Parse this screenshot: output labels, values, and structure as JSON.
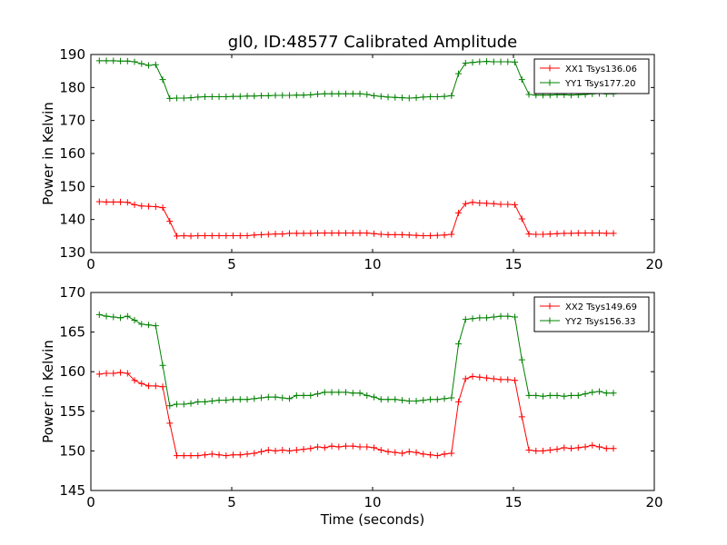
{
  "title": "gl0, ID:48577 Calibrated Amplitude",
  "xlabel": "Time (seconds)",
  "chart_data": [
    {
      "type": "line",
      "xlabel": "",
      "ylabel": "Power in Kelvin",
      "xlim": [
        0,
        20
      ],
      "ylim": [
        130,
        190
      ],
      "xticks": [
        0,
        5,
        10,
        15,
        20
      ],
      "yticks": [
        130,
        140,
        150,
        160,
        170,
        180,
        190
      ],
      "grid": false,
      "legend": "top-right",
      "x": [
        0.3,
        0.55,
        0.8,
        1.05,
        1.3,
        1.55,
        1.8,
        2.05,
        2.3,
        2.55,
        2.8,
        3.05,
        3.3,
        3.55,
        3.8,
        4.05,
        4.3,
        4.55,
        4.8,
        5.05,
        5.3,
        5.55,
        5.8,
        6.05,
        6.3,
        6.55,
        6.8,
        7.05,
        7.3,
        7.55,
        7.8,
        8.05,
        8.3,
        8.55,
        8.8,
        9.05,
        9.3,
        9.55,
        9.8,
        10.05,
        10.3,
        10.55,
        10.8,
        11.05,
        11.3,
        11.55,
        11.8,
        12.05,
        12.3,
        12.55,
        12.8,
        13.05,
        13.3,
        13.55,
        13.8,
        14.05,
        14.3,
        14.55,
        14.8,
        15.05,
        15.3,
        15.55,
        15.8,
        16.05,
        16.3,
        16.55,
        16.8,
        17.05,
        17.3,
        17.55,
        17.8,
        18.05,
        18.3,
        18.55
      ],
      "series": [
        {
          "name": "XX1 Tsys136.06",
          "color": "#ff0000",
          "values": [
            145.4,
            145.3,
            145.3,
            145.3,
            145.2,
            144.5,
            144.1,
            144.0,
            143.9,
            143.6,
            139.5,
            135.0,
            135.1,
            135.0,
            135.1,
            135.1,
            135.1,
            135.1,
            135.1,
            135.1,
            135.1,
            135.1,
            135.3,
            135.4,
            135.5,
            135.6,
            135.6,
            135.8,
            135.8,
            135.8,
            135.8,
            135.9,
            135.9,
            135.9,
            135.9,
            135.9,
            135.9,
            135.9,
            135.9,
            135.7,
            135.5,
            135.4,
            135.4,
            135.4,
            135.3,
            135.2,
            135.1,
            135.1,
            135.2,
            135.3,
            135.5,
            142.0,
            144.8,
            145.2,
            145.0,
            144.9,
            144.8,
            144.6,
            144.6,
            144.5,
            140.2,
            135.6,
            135.5,
            135.5,
            135.6,
            135.7,
            135.8,
            135.8,
            135.9,
            135.9,
            135.9,
            135.9,
            135.8,
            135.8
          ]
        },
        {
          "name": "YY1 Tsys177.20",
          "color": "#008000",
          "values": [
            188.1,
            188.1,
            188.1,
            188.0,
            188.0,
            187.8,
            187.2,
            186.7,
            186.9,
            182.4,
            176.7,
            176.8,
            176.8,
            176.9,
            177.1,
            177.2,
            177.2,
            177.2,
            177.2,
            177.3,
            177.3,
            177.4,
            177.4,
            177.5,
            177.5,
            177.6,
            177.6,
            177.6,
            177.7,
            177.7,
            177.8,
            178.0,
            178.1,
            178.1,
            178.1,
            178.1,
            178.1,
            178.1,
            177.9,
            177.5,
            177.3,
            177.1,
            177.0,
            176.9,
            176.8,
            176.9,
            177.1,
            177.2,
            177.2,
            177.3,
            177.5,
            184.2,
            187.4,
            187.6,
            187.8,
            187.9,
            187.8,
            187.8,
            187.8,
            187.7,
            182.4,
            177.9,
            177.7,
            177.7,
            177.7,
            177.8,
            177.8,
            177.7,
            177.8,
            177.9,
            178.1,
            178.2,
            178.1,
            178.1
          ]
        }
      ]
    },
    {
      "type": "line",
      "xlabel": "Time (seconds)",
      "ylabel": "Power in Kelvin",
      "xlim": [
        0,
        20
      ],
      "ylim": [
        145,
        170
      ],
      "xticks": [
        0,
        5,
        10,
        15,
        20
      ],
      "yticks": [
        145,
        150,
        155,
        160,
        165,
        170
      ],
      "grid": false,
      "legend": "top-right",
      "x": [
        0.3,
        0.55,
        0.8,
        1.05,
        1.3,
        1.55,
        1.8,
        2.05,
        2.3,
        2.55,
        2.8,
        3.05,
        3.3,
        3.55,
        3.8,
        4.05,
        4.3,
        4.55,
        4.8,
        5.05,
        5.3,
        5.55,
        5.8,
        6.05,
        6.3,
        6.55,
        6.8,
        7.05,
        7.3,
        7.55,
        7.8,
        8.05,
        8.3,
        8.55,
        8.8,
        9.05,
        9.3,
        9.55,
        9.8,
        10.05,
        10.3,
        10.55,
        10.8,
        11.05,
        11.3,
        11.55,
        11.8,
        12.05,
        12.3,
        12.55,
        12.8,
        13.05,
        13.3,
        13.55,
        13.8,
        14.05,
        14.3,
        14.55,
        14.8,
        15.05,
        15.3,
        15.55,
        15.8,
        16.05,
        16.3,
        16.55,
        16.8,
        17.05,
        17.3,
        17.55,
        17.8,
        18.05,
        18.3,
        18.55
      ],
      "series": [
        {
          "name": "XX2 Tsys149.69",
          "color": "#ff0000",
          "values": [
            159.7,
            159.8,
            159.8,
            159.9,
            159.8,
            158.9,
            158.5,
            158.2,
            158.2,
            158.1,
            153.5,
            149.4,
            149.4,
            149.4,
            149.4,
            149.5,
            149.6,
            149.5,
            149.4,
            149.5,
            149.5,
            149.6,
            149.7,
            149.9,
            150.1,
            150.0,
            150.1,
            150.0,
            150.1,
            150.2,
            150.3,
            150.5,
            150.4,
            150.6,
            150.5,
            150.6,
            150.6,
            150.5,
            150.5,
            150.4,
            150.1,
            149.9,
            149.8,
            149.7,
            149.9,
            149.8,
            149.6,
            149.5,
            149.4,
            149.6,
            149.7,
            156.2,
            159.1,
            159.4,
            159.3,
            159.2,
            159.1,
            159.0,
            159.0,
            158.9,
            154.3,
            150.1,
            150.0,
            150.0,
            150.1,
            150.2,
            150.4,
            150.3,
            150.4,
            150.5,
            150.7,
            150.5,
            150.3,
            150.3
          ]
        },
        {
          "name": "YY2 Tsys156.33",
          "color": "#008000",
          "values": [
            167.2,
            167.0,
            166.9,
            166.8,
            167.0,
            166.5,
            166.0,
            165.9,
            165.8,
            160.8,
            155.7,
            155.9,
            155.9,
            156.0,
            156.2,
            156.2,
            156.3,
            156.4,
            156.4,
            156.5,
            156.5,
            156.5,
            156.6,
            156.7,
            156.8,
            156.8,
            156.7,
            156.6,
            157.0,
            157.0,
            157.0,
            157.2,
            157.4,
            157.4,
            157.4,
            157.4,
            157.3,
            157.3,
            157.0,
            156.8,
            156.5,
            156.5,
            156.5,
            156.4,
            156.3,
            156.3,
            156.4,
            156.5,
            156.5,
            156.6,
            156.7,
            163.5,
            166.6,
            166.7,
            166.8,
            166.8,
            166.9,
            167.0,
            167.0,
            166.9,
            161.5,
            157.0,
            157.0,
            156.9,
            157.0,
            157.0,
            156.9,
            157.0,
            157.0,
            157.2,
            157.4,
            157.5,
            157.3,
            157.3
          ]
        }
      ]
    }
  ]
}
